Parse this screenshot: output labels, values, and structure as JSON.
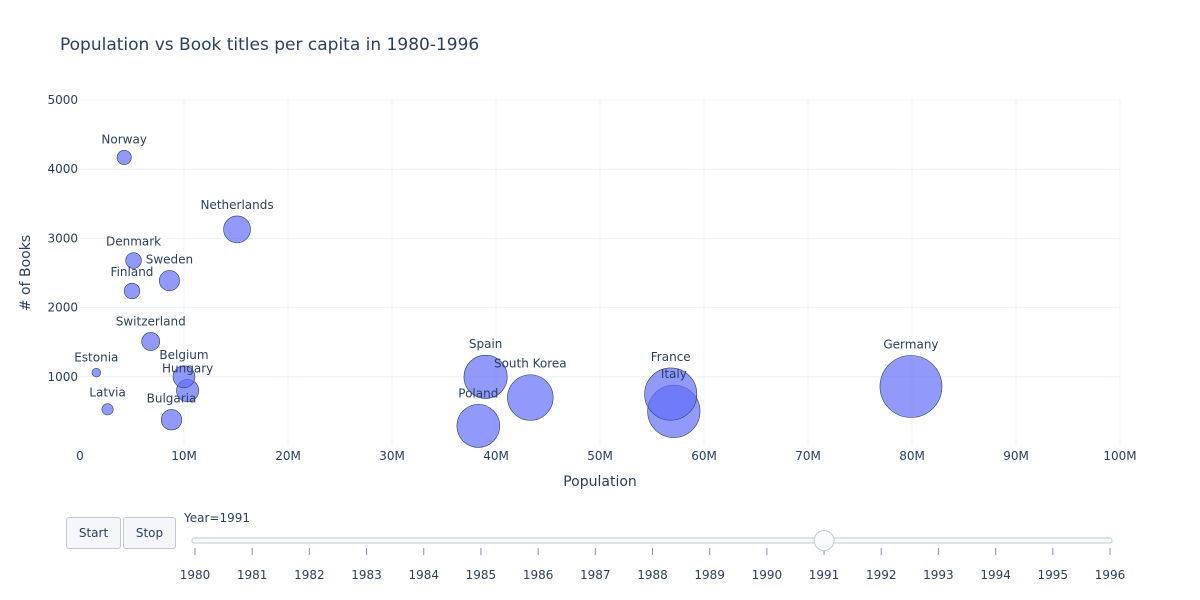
{
  "chart_data": {
    "type": "scatter",
    "title": "Population vs Book titles per capita in 1980-1996",
    "xlabel": "Population",
    "ylabel": "# of Books",
    "xlim": [
      0,
      100000000
    ],
    "ylim": [
      0,
      5000
    ],
    "x_ticks": [
      {
        "value": 0,
        "label": "0"
      },
      {
        "value": 10000000,
        "label": "10M"
      },
      {
        "value": 20000000,
        "label": "20M"
      },
      {
        "value": 30000000,
        "label": "30M"
      },
      {
        "value": 40000000,
        "label": "40M"
      },
      {
        "value": 50000000,
        "label": "50M"
      },
      {
        "value": 60000000,
        "label": "60M"
      },
      {
        "value": 70000000,
        "label": "70M"
      },
      {
        "value": 80000000,
        "label": "80M"
      },
      {
        "value": 90000000,
        "label": "90M"
      },
      {
        "value": 100000000,
        "label": "100M"
      }
    ],
    "y_ticks": [
      {
        "value": 1000,
        "label": "1000"
      },
      {
        "value": 2000,
        "label": "2000"
      },
      {
        "value": 3000,
        "label": "3000"
      },
      {
        "value": 4000,
        "label": "4000"
      },
      {
        "value": 5000,
        "label": "5000"
      }
    ],
    "grid": true,
    "bubble_color": "#636efa",
    "size_encoding": "population",
    "points": [
      {
        "label": "Norway",
        "x": 4250000,
        "y": 4170
      },
      {
        "label": "Netherlands",
        "x": 15100000,
        "y": 3130
      },
      {
        "label": "Denmark",
        "x": 5150000,
        "y": 2680
      },
      {
        "label": "Sweden",
        "x": 8600000,
        "y": 2390
      },
      {
        "label": "Finland",
        "x": 5000000,
        "y": 2240
      },
      {
        "label": "Switzerland",
        "x": 6800000,
        "y": 1510
      },
      {
        "label": "Estonia",
        "x": 1570000,
        "y": 1060
      },
      {
        "label": "Belgium",
        "x": 10000000,
        "y": 1000
      },
      {
        "label": "Hungary",
        "x": 10350000,
        "y": 800
      },
      {
        "label": "Latvia",
        "x": 2650000,
        "y": 530
      },
      {
        "label": "Bulgaria",
        "x": 8800000,
        "y": 380
      },
      {
        "label": "Spain",
        "x": 39000000,
        "y": 1000
      },
      {
        "label": "South Korea",
        "x": 43300000,
        "y": 700
      },
      {
        "label": "Poland",
        "x": 38300000,
        "y": 290
      },
      {
        "label": "France",
        "x": 56800000,
        "y": 750
      },
      {
        "label": "Italy",
        "x": 57100000,
        "y": 500
      },
      {
        "label": "Germany",
        "x": 79900000,
        "y": 860
      }
    ]
  },
  "controls": {
    "start_label": "Start",
    "stop_label": "Stop"
  },
  "slider": {
    "current_label": "Year=1991",
    "current_year": 1991,
    "years": [
      "1980",
      "1981",
      "1982",
      "1983",
      "1984",
      "1985",
      "1986",
      "1987",
      "1988",
      "1989",
      "1990",
      "1991",
      "1992",
      "1993",
      "1994",
      "1995",
      "1996"
    ]
  }
}
